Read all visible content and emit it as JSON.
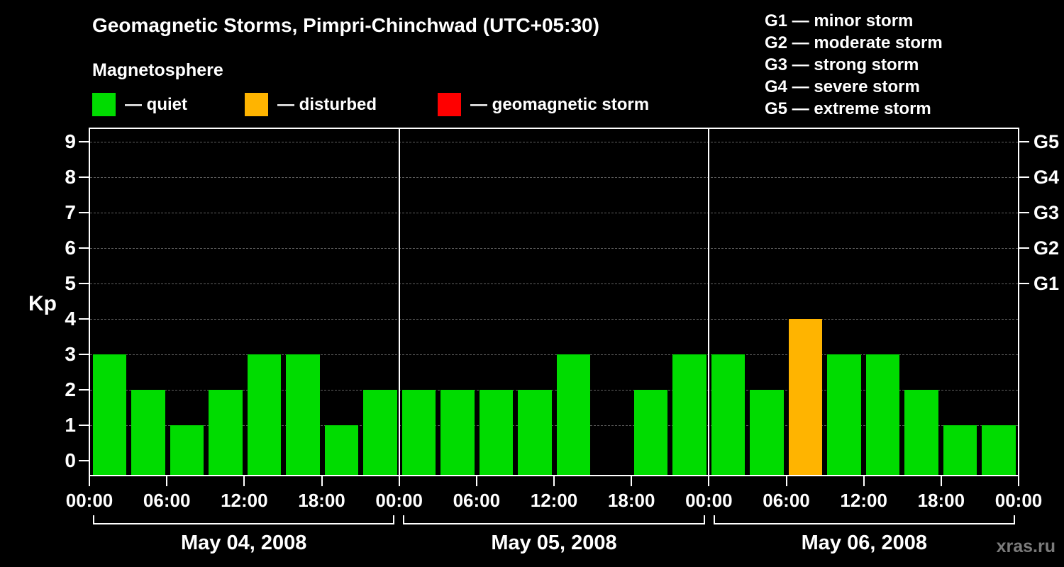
{
  "header": {
    "title": "Geomagnetic Storms, Pimpri-Chinchwad (UTC+05:30)",
    "subtitle": "Magnetosphere",
    "legend": [
      {
        "key": "quiet",
        "label": "— quiet",
        "color": "#00DC00"
      },
      {
        "key": "disturbed",
        "label": "— disturbed",
        "color": "#FFB400"
      },
      {
        "key": "storm",
        "label": "— geomagnetic storm",
        "color": "#FF0000"
      }
    ],
    "g_scale_legend": [
      "G1 — minor storm",
      "G2 — moderate storm",
      "G3 — strong storm",
      "G4 — severe storm",
      "G5 — extreme storm"
    ]
  },
  "chart_data": {
    "type": "bar",
    "title": "Kp index in 3-hour intervals over three days",
    "ylabel": "Kp",
    "xlabel": "",
    "ylim": [
      0,
      9.6
    ],
    "y_ticks": [
      0,
      1,
      2,
      3,
      4,
      5,
      6,
      7,
      8,
      9
    ],
    "grid": "dashed horizontal line at each Kp level 1-9",
    "legend_position": "top",
    "x_tick_labels": [
      "00:00",
      "06:00",
      "12:00",
      "18:00",
      "00:00",
      "06:00",
      "12:00",
      "18:00",
      "00:00",
      "06:00",
      "12:00",
      "18:00",
      "00:00"
    ],
    "slot_hours": 3,
    "days": [
      {
        "label": "May 04, 2008",
        "kp": [
          3,
          2,
          1,
          2,
          3,
          3,
          1,
          2
        ]
      },
      {
        "label": "May 05, 2008",
        "kp": [
          2,
          2,
          2,
          2,
          3,
          0,
          2,
          3
        ]
      },
      {
        "label": "May 06, 2008",
        "kp": [
          3,
          2,
          4,
          3,
          3,
          2,
          1,
          1
        ]
      }
    ],
    "right_axis_labels": [
      {
        "kp": 5,
        "label": "G1"
      },
      {
        "kp": 6,
        "label": "G2"
      },
      {
        "kp": 7,
        "label": "G3"
      },
      {
        "kp": 8,
        "label": "G4"
      },
      {
        "kp": 9,
        "label": "G5"
      }
    ],
    "colors": {
      "quiet": "#00DC00",
      "disturbed": "#FFB400",
      "storm": "#FF0000"
    },
    "color_rule": "kp<=3 quiet (green), kp=4 disturbed (orange), kp>=5 storm (red)"
  },
  "watermark": "xras.ru"
}
